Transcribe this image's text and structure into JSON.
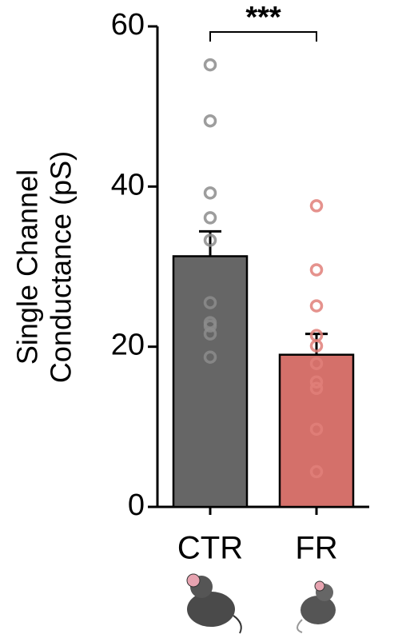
{
  "chart_data": {
    "type": "bar",
    "ylabel": [
      "Single Channel",
      "Conductance (pS)"
    ],
    "categories": [
      "CTR",
      "FR"
    ],
    "values": [
      31.3,
      19.0
    ],
    "errors": [
      3.1,
      2.6
    ],
    "colors": [
      "#666666",
      "#d4706a"
    ],
    "point_colors": [
      "#8c8c8c",
      "#e07f79"
    ],
    "points": [
      [
        55.2,
        48.2,
        39.2,
        36.1,
        33.3,
        25.5,
        23.0,
        22.6,
        21.6,
        18.7
      ],
      [
        37.6,
        29.6,
        25.1,
        21.4,
        20.1,
        17.9,
        15.6,
        14.8,
        9.7,
        4.4
      ]
    ],
    "annotation": {
      "text": "***",
      "between": [
        0,
        1
      ]
    },
    "ylim": [
      0,
      60
    ],
    "yticks": [
      0,
      20,
      40,
      60
    ]
  }
}
